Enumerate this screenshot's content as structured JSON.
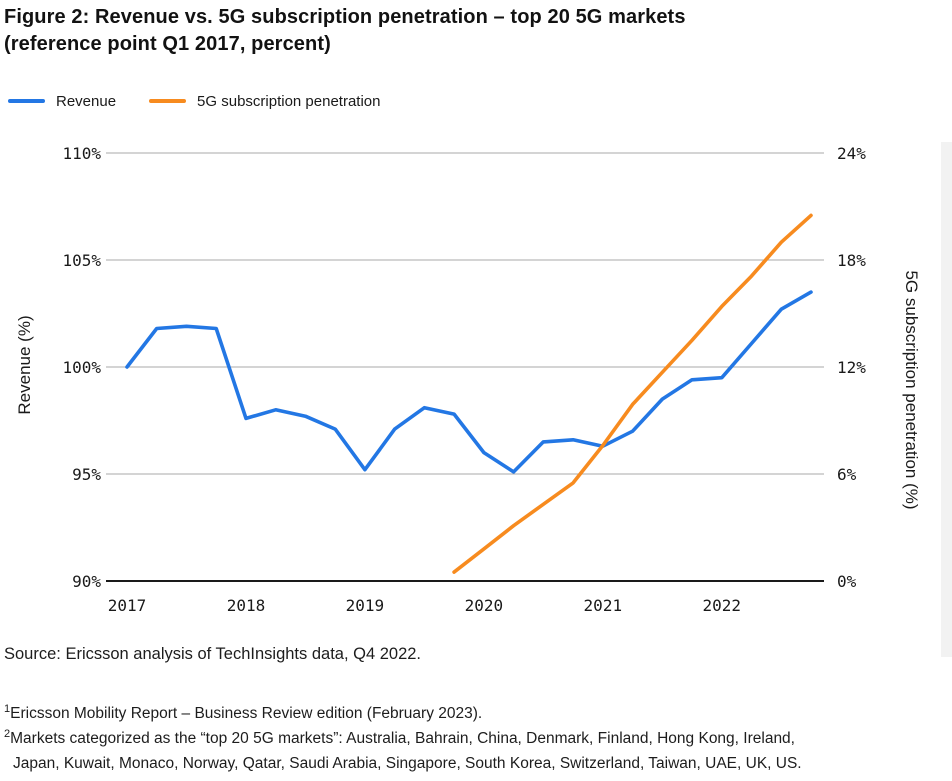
{
  "heading": {
    "line1": "Figure 2: Revenue vs. 5G subscription penetration – top 20 5G markets",
    "line2": "(reference point Q1 2017, percent)"
  },
  "legend": {
    "items": [
      {
        "label": "Revenue"
      },
      {
        "label": "5G subscription penetration"
      }
    ]
  },
  "chart_data": {
    "type": "line",
    "title": "Figure 2: Revenue vs. 5G subscription penetration – top 20 5G markets (reference point Q1 2017, percent)",
    "x_unit": "quarter",
    "x_range": [
      "Q1 2017",
      "Q4 2022"
    ],
    "x_ticks": [
      {
        "label": "2017",
        "qi": 0
      },
      {
        "label": "2018",
        "qi": 4
      },
      {
        "label": "2019",
        "qi": 8
      },
      {
        "label": "2020",
        "qi": 12
      },
      {
        "label": "2021",
        "qi": 16
      },
      {
        "label": "2022",
        "qi": 20
      }
    ],
    "left_axis": {
      "label": "Revenue (%)",
      "min": 90,
      "max": 110,
      "ticks": [
        {
          "v": 90,
          "label": "90%"
        },
        {
          "v": 95,
          "label": "95%"
        },
        {
          "v": 100,
          "label": "100%"
        },
        {
          "v": 105,
          "label": "105%"
        },
        {
          "v": 110,
          "label": "110%"
        }
      ]
    },
    "right_axis": {
      "label": "5G subscription penetration (%)",
      "min": 0,
      "max": 24,
      "ticks": [
        {
          "v": 0,
          "label": "0%"
        },
        {
          "v": 6,
          "label": "6%"
        },
        {
          "v": 12,
          "label": "12%"
        },
        {
          "v": 18,
          "label": "18%"
        },
        {
          "v": 24,
          "label": "24%"
        }
      ]
    },
    "grid_on": true,
    "grid_color": "#a9a9a9",
    "axis_color": "#1a1a1a",
    "legend_position": "top-left",
    "series": [
      {
        "name": "Revenue",
        "axis": "left",
        "color": "#2377e4",
        "start_quarter": "Q1 2017",
        "start_index": 0,
        "values": [
          100.0,
          101.8,
          101.9,
          101.8,
          97.6,
          98.0,
          97.7,
          97.1,
          95.2,
          97.1,
          98.1,
          97.8,
          96.0,
          95.1,
          96.5,
          96.6,
          96.3,
          97.0,
          98.5,
          99.4,
          99.5,
          101.1,
          102.7,
          103.5
        ]
      },
      {
        "name": "5G subscription penetration",
        "axis": "right",
        "color": "#f78b1f",
        "start_quarter": "Q4 2019",
        "start_index": 11,
        "values": [
          0.5,
          1.8,
          3.1,
          4.3,
          5.5,
          7.6,
          9.9,
          11.7,
          13.5,
          15.4,
          17.1,
          19.0,
          20.5
        ]
      }
    ]
  },
  "source": "Source: Ericsson analysis of TechInsights data, Q4 2022.",
  "footnotes": [
    {
      "marker": "1",
      "text": "Ericsson Mobility Report – Business Review edition (February 2023)."
    },
    {
      "marker": "2",
      "line1": "Markets categorized as the “top 20 5G markets”: Australia, Bahrain, China, Denmark, Finland, Hong Kong, Ireland,",
      "line2": "Japan, Kuwait, Monaco, Norway, Qatar, Saudi Arabia, Singapore, South Korea, Switzerland, Taiwan, UAE, UK, US."
    }
  ]
}
